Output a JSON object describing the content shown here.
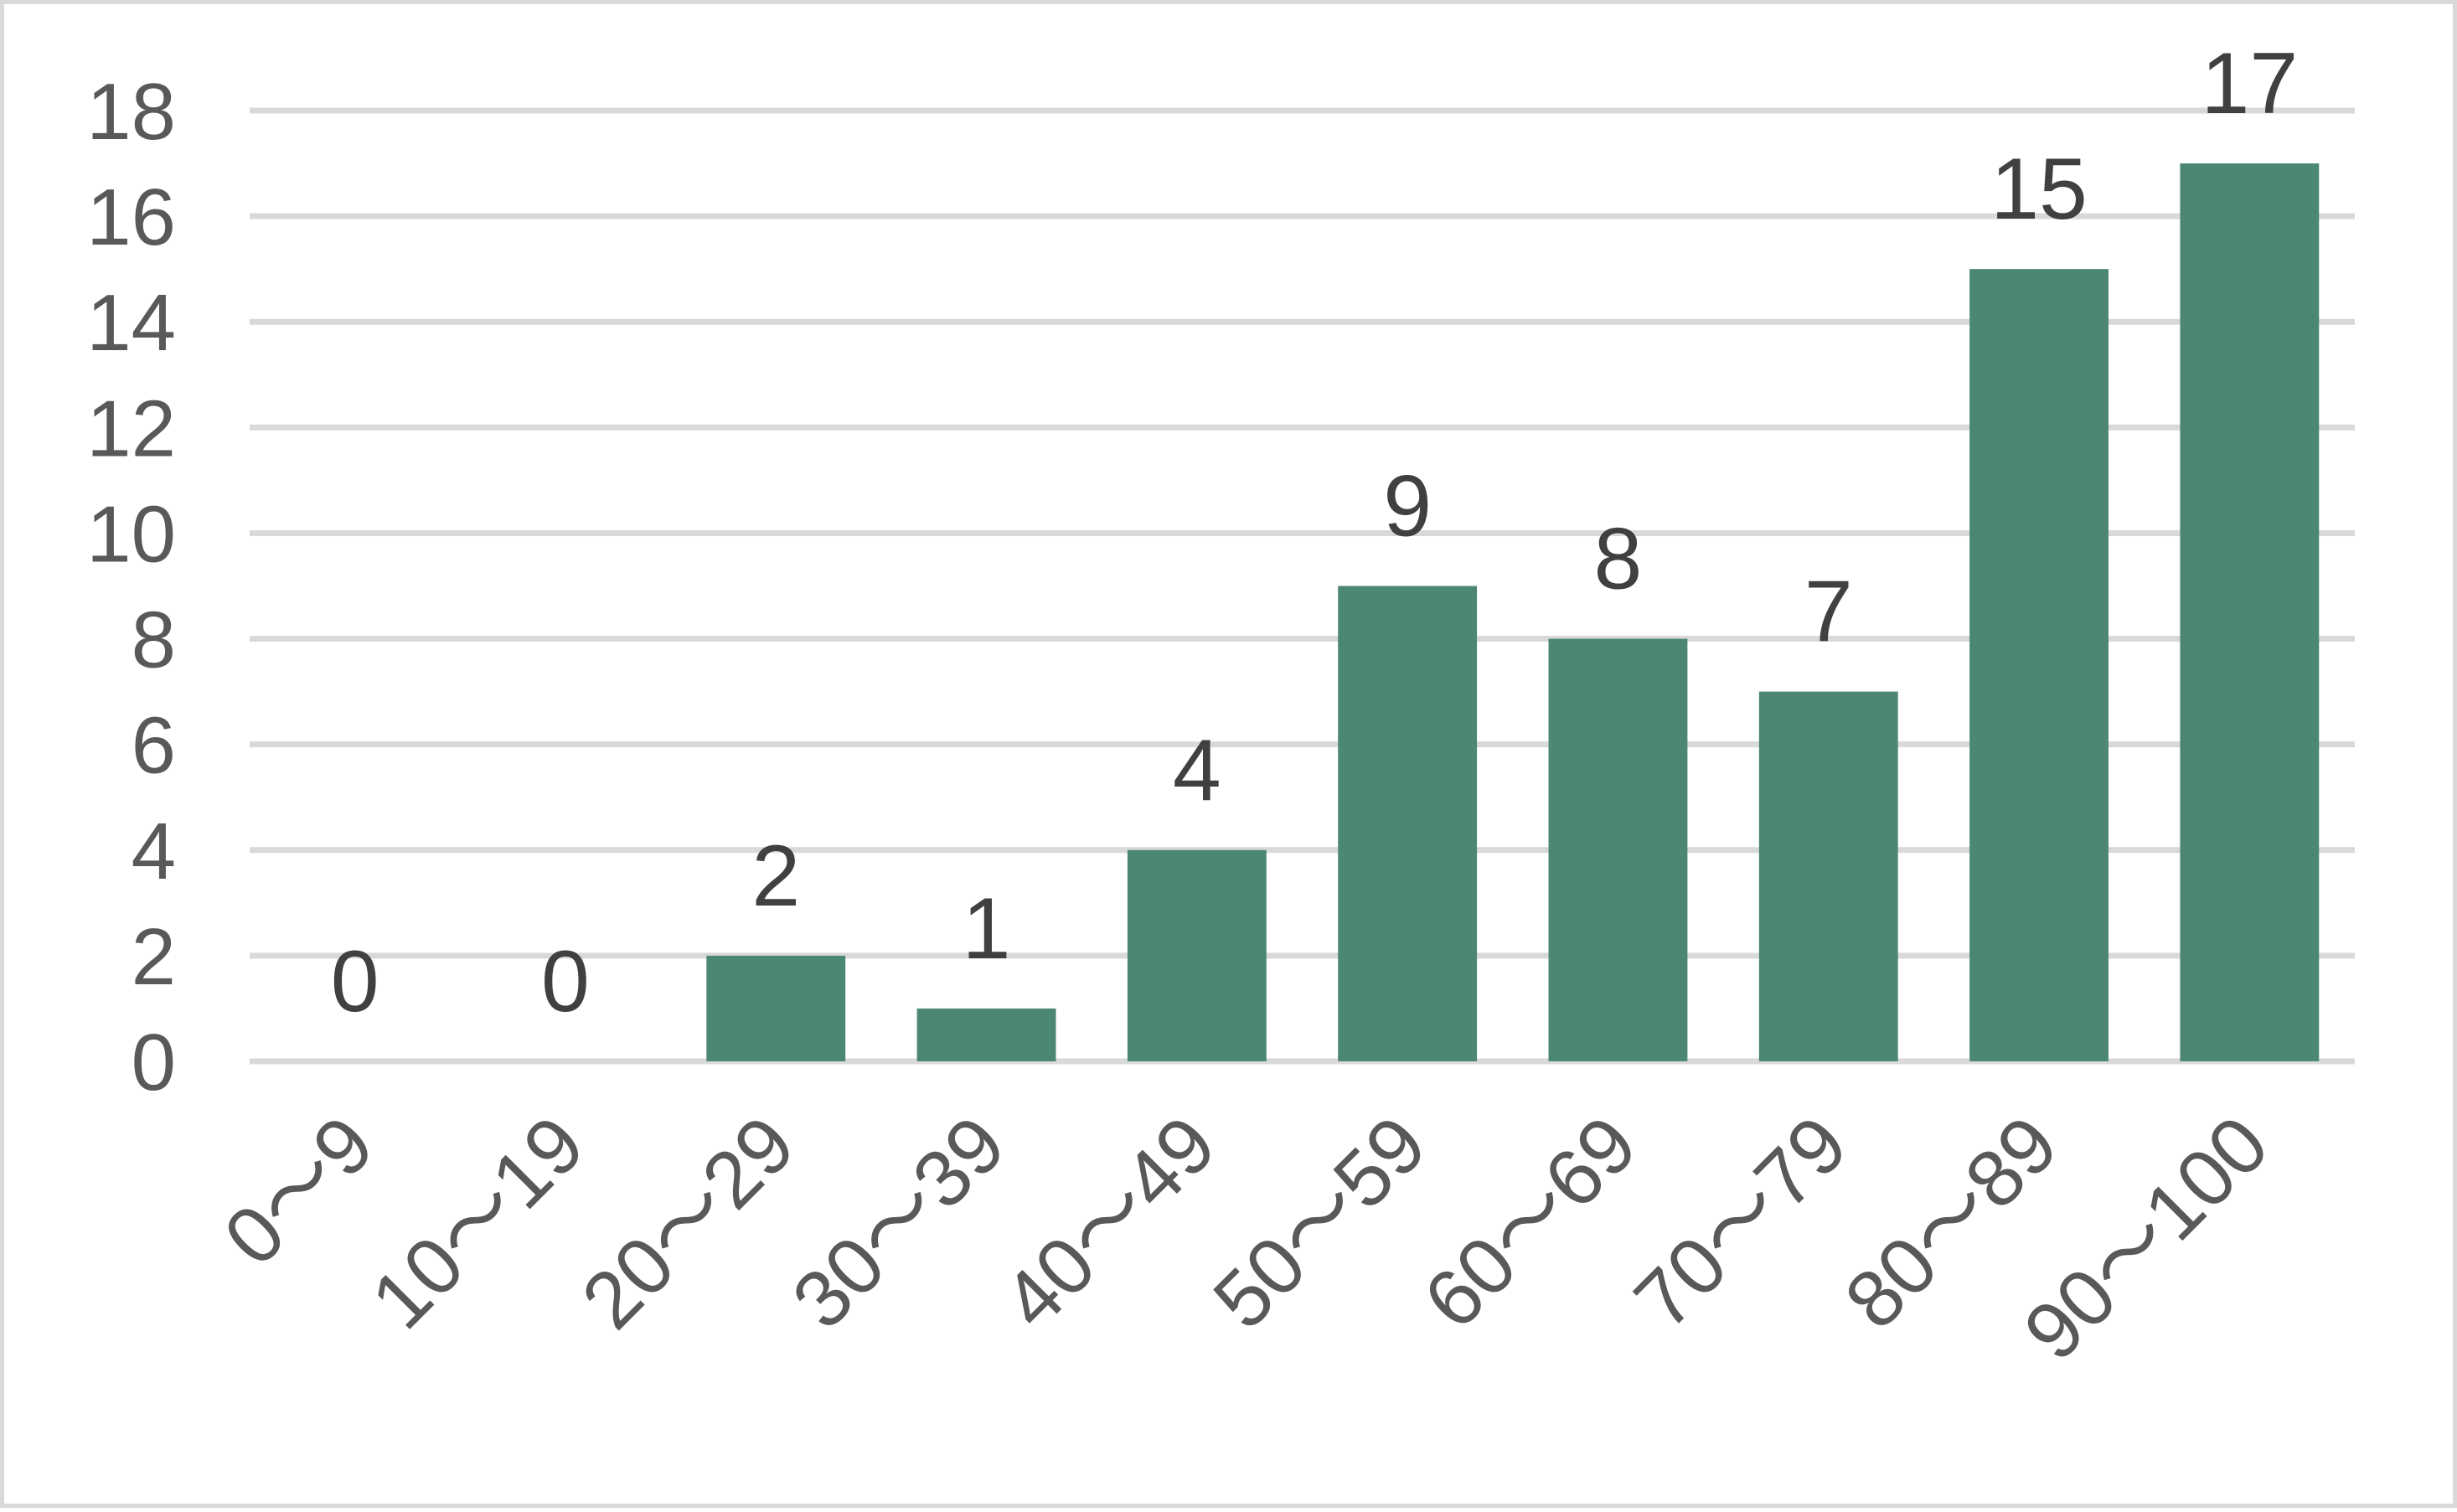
{
  "chart_data": {
    "type": "bar",
    "title": "",
    "xlabel": "",
    "ylabel": "",
    "categories": [
      "0～9",
      "10～19",
      "20～29",
      "30～39",
      "40～49",
      "50～59",
      "60～69",
      "70～79",
      "80～89",
      "90～100"
    ],
    "values": [
      0,
      0,
      2,
      1,
      4,
      9,
      8,
      7,
      15,
      17
    ],
    "ylim": [
      0,
      18
    ],
    "yticks": [
      0,
      2,
      4,
      6,
      8,
      10,
      12,
      14,
      16,
      18
    ],
    "grid": true,
    "legend": "none",
    "data_labels": true,
    "colors": {
      "bar": "#4c8871",
      "grid": "#d9d9d9",
      "axis_text": "#595959",
      "data_label_text": "#404040",
      "border": "#d9d9d9"
    }
  }
}
